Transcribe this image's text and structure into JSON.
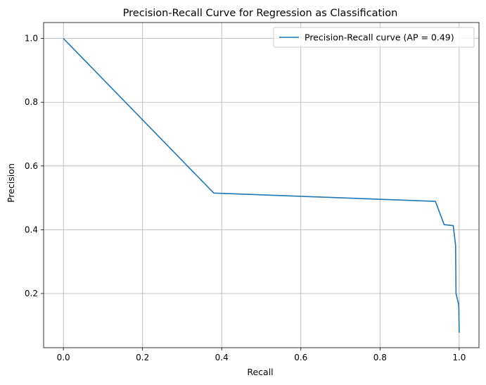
{
  "chart_data": {
    "type": "line",
    "title": "Precision-Recall Curve for Regression as Classification",
    "xlabel": "Recall",
    "ylabel": "Precision",
    "xlim": [
      -0.05,
      1.05
    ],
    "ylim": [
      0.03,
      1.05
    ],
    "xticks": [
      0.0,
      0.2,
      0.4,
      0.6,
      0.8,
      1.0
    ],
    "xtick_labels": [
      "0.0",
      "0.2",
      "0.4",
      "0.6",
      "0.8",
      "1.0"
    ],
    "yticks": [
      0.2,
      0.4,
      0.6,
      0.8,
      1.0
    ],
    "ytick_labels": [
      "0.2",
      "0.4",
      "0.6",
      "0.8",
      "1.0"
    ],
    "grid": true,
    "legend_position": "top-right",
    "series": [
      {
        "name": "Precision-Recall curve (AP = 0.49)",
        "color": "#1f77b4",
        "x": [
          0.0,
          0.38,
          0.94,
          0.962,
          0.985,
          0.99,
          0.991,
          0.992,
          0.995,
          0.998,
          0.999,
          1.0
        ],
        "y": [
          1.0,
          0.515,
          0.489,
          0.416,
          0.413,
          0.36,
          0.35,
          0.2,
          0.185,
          0.17,
          0.16,
          0.077
        ]
      }
    ]
  }
}
